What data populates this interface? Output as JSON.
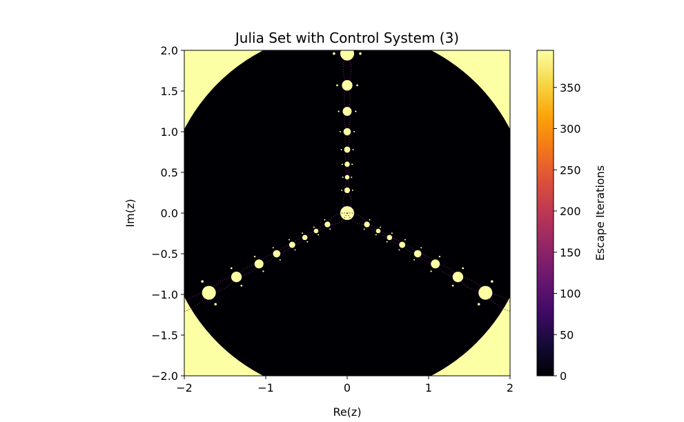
{
  "chart_data": {
    "type": "heatmap",
    "title": "Julia Set with Control System (3)",
    "xlabel": "Re(z)",
    "ylabel": "Im(z)",
    "xlim": [
      -2,
      2
    ],
    "ylim": [
      -2,
      2
    ],
    "x_ticks": [
      -2,
      -1,
      0,
      1,
      2
    ],
    "x_tick_labels": [
      "−2",
      "−1",
      "0",
      "1",
      "2"
    ],
    "y_ticks": [
      -2.0,
      -1.5,
      -1.0,
      -0.5,
      0.0,
      0.5,
      1.0,
      1.5,
      2.0
    ],
    "y_tick_labels": [
      "−2.0",
      "−1.5",
      "−1.0",
      "−0.5",
      "0.0",
      "0.5",
      "1.0",
      "1.5",
      "2.0"
    ],
    "grid": false,
    "colormap": "inferno",
    "background_value": 0,
    "colorbar": {
      "label": "Escape Iterations",
      "range": [
        0,
        395
      ],
      "ticks": [
        0,
        50,
        100,
        150,
        200,
        250,
        300,
        350
      ],
      "tick_labels": [
        "0",
        "50",
        "100",
        "150",
        "200",
        "250",
        "300",
        "350"
      ]
    },
    "structure": {
      "escape_radius": 2.25,
      "outer_region_value": 395,
      "arm_angles_deg": [
        90,
        210,
        330
      ],
      "bulbs_along_arm": [
        {
          "distance": 0.0,
          "radius": 0.085,
          "value": 395
        },
        {
          "distance": 0.28,
          "radius": 0.035,
          "value": 395
        },
        {
          "distance": 0.44,
          "radius": 0.028,
          "value": 395
        },
        {
          "distance": 0.6,
          "radius": 0.032,
          "value": 395
        },
        {
          "distance": 0.78,
          "radius": 0.038,
          "value": 395
        },
        {
          "distance": 1.0,
          "radius": 0.045,
          "value": 395
        },
        {
          "distance": 1.25,
          "radius": 0.055,
          "value": 395
        },
        {
          "distance": 1.57,
          "radius": 0.065,
          "value": 395
        },
        {
          "distance": 1.96,
          "radius": 0.085,
          "value": 395
        }
      ]
    }
  }
}
